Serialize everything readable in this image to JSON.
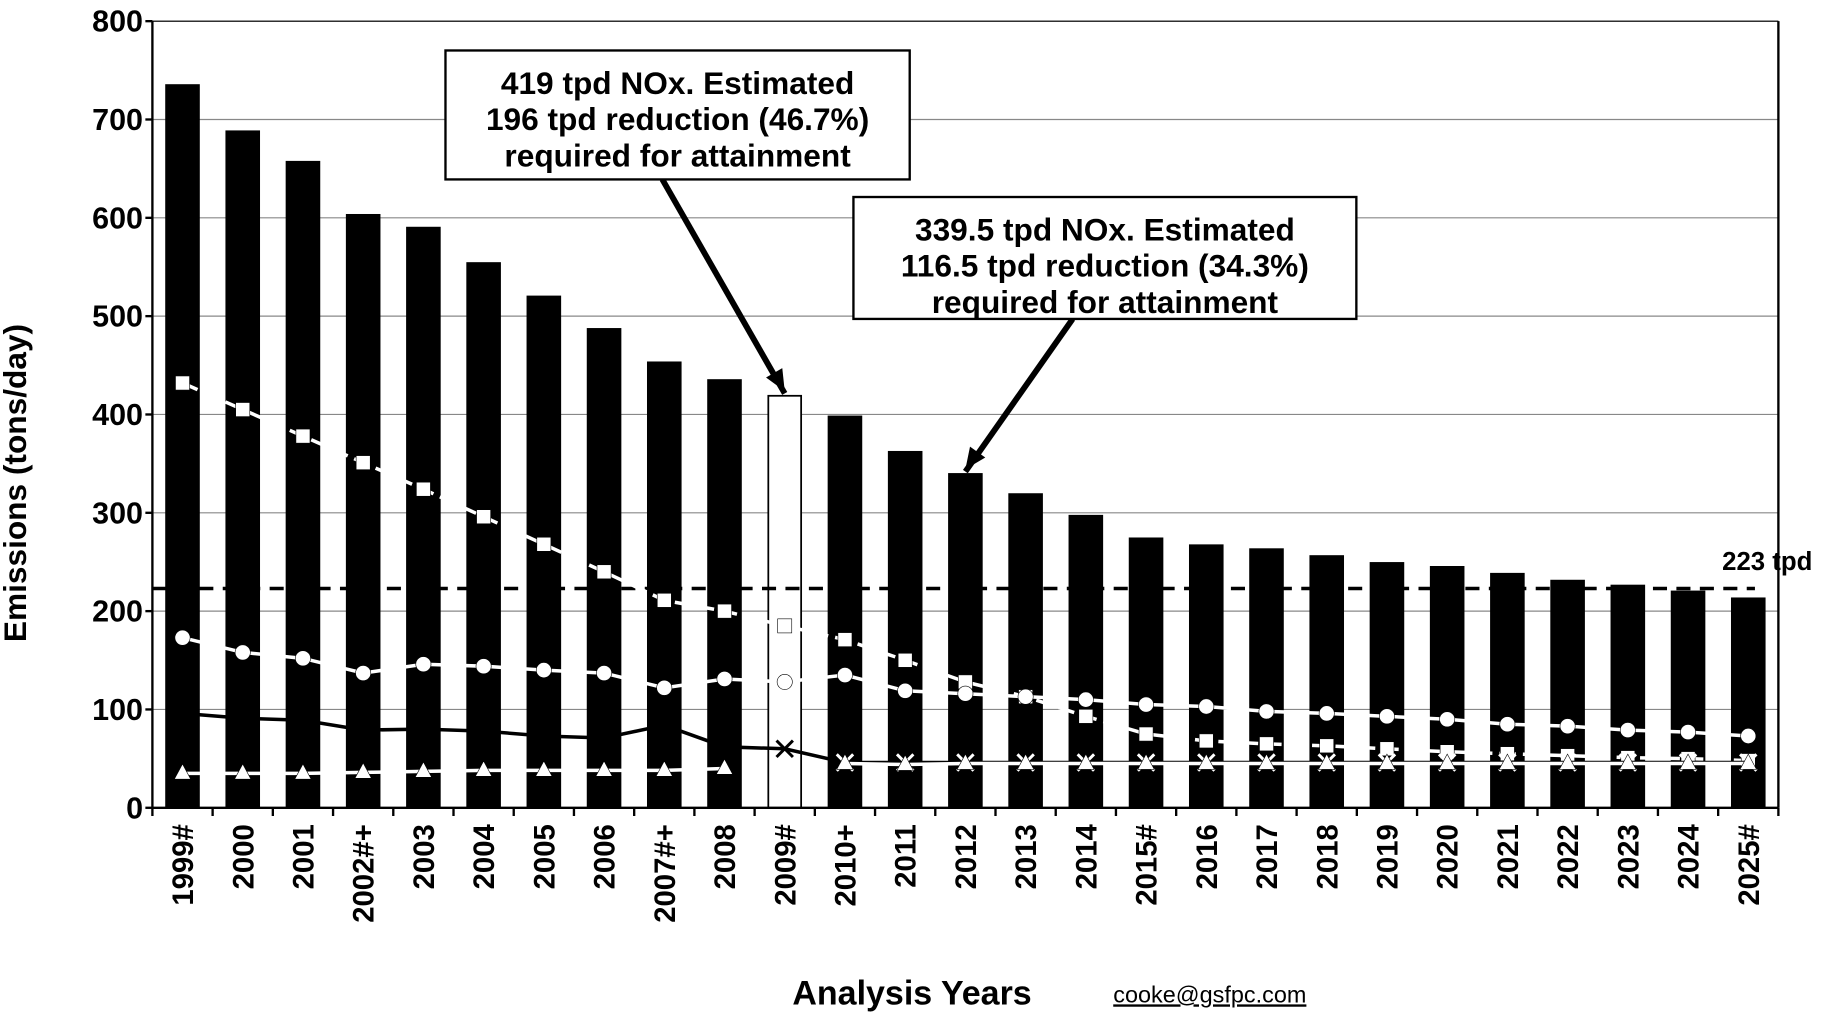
{
  "chart_data": {
    "type": "bar",
    "xlabel": "Analysis Years",
    "ylabel": "Emissions (tons/day)",
    "credit": "cooke@gsfpc.com",
    "categories": [
      "1999#",
      "2000",
      "2001",
      "2002#+",
      "2003",
      "2004",
      "2005",
      "2006",
      "2007#+",
      "2008",
      "2009#",
      "2010+",
      "2011",
      "2012",
      "2013",
      "2014",
      "2015#",
      "2016",
      "2017",
      "2018",
      "2019",
      "2020",
      "2021",
      "2022",
      "2023",
      "2024",
      "2025#"
    ],
    "values": [
      735,
      688,
      657,
      603,
      590,
      554,
      520,
      487,
      453,
      435,
      419,
      398,
      362,
      339.5,
      319,
      297,
      274,
      267,
      263,
      256,
      249,
      245,
      238,
      231,
      226,
      220,
      213
    ],
    "bar_colors": [
      "#000000",
      "#000000",
      "#000000",
      "#000000",
      "#000000",
      "#000000",
      "#000000",
      "#000000",
      "#000000",
      "#000000",
      "#ffffff",
      "#000000",
      "#000000",
      "#000000",
      "#000000",
      "#000000",
      "#000000",
      "#000000",
      "#000000",
      "#000000",
      "#000000",
      "#000000",
      "#000000",
      "#000000",
      "#000000",
      "#000000",
      "#000000"
    ],
    "series": [
      {
        "color": "#ffffff",
        "marker": "square",
        "dash": true,
        "values": [
          432,
          405,
          378,
          351,
          324,
          296,
          268,
          240,
          211,
          200,
          185,
          171,
          150,
          128,
          113,
          93,
          75,
          68,
          65,
          63,
          60,
          57,
          55,
          53,
          51,
          50,
          48
        ]
      },
      {
        "color": "#ffffff",
        "marker": "circle",
        "dash": false,
        "values": [
          173,
          158,
          152,
          137,
          146,
          144,
          140,
          137,
          122,
          131,
          128,
          135,
          119,
          116,
          113,
          110,
          105,
          103,
          98,
          96,
          93,
          90,
          85,
          83,
          79,
          77,
          73
        ]
      },
      {
        "color": "#000000",
        "marker": "x",
        "dash": false,
        "values": [
          96,
          91,
          89,
          79,
          80,
          78,
          73,
          71,
          84,
          62,
          60,
          46,
          46,
          46,
          46,
          46,
          46,
          46,
          46,
          46,
          46,
          46,
          46,
          46,
          46,
          46,
          46
        ]
      },
      {
        "color": "#ffffff",
        "marker": "triangle",
        "dash": false,
        "values": [
          35,
          35,
          35,
          36,
          37,
          38,
          38,
          38,
          38,
          40,
          null,
          45,
          44,
          45,
          45,
          45,
          45,
          45,
          45,
          45,
          45,
          45,
          45,
          45,
          45,
          45,
          45
        ]
      }
    ],
    "target": {
      "value": 223,
      "label": "223 tpd"
    },
    "annotations": [
      {
        "lines": [
          "419 tpd NOx. Estimated",
          "196 tpd reduction (46.7%)",
          "required for attainment"
        ],
        "category": 10
      },
      {
        "lines": [
          "339.5 tpd NOx.  Estimated",
          "116.5 tpd reduction (34.3%)",
          "required for attainment"
        ],
        "category": 13
      }
    ],
    "ylim": [
      0,
      800
    ],
    "yticks": [
      0,
      100,
      200,
      300,
      400,
      500,
      600,
      700,
      800
    ],
    "grid": true
  }
}
